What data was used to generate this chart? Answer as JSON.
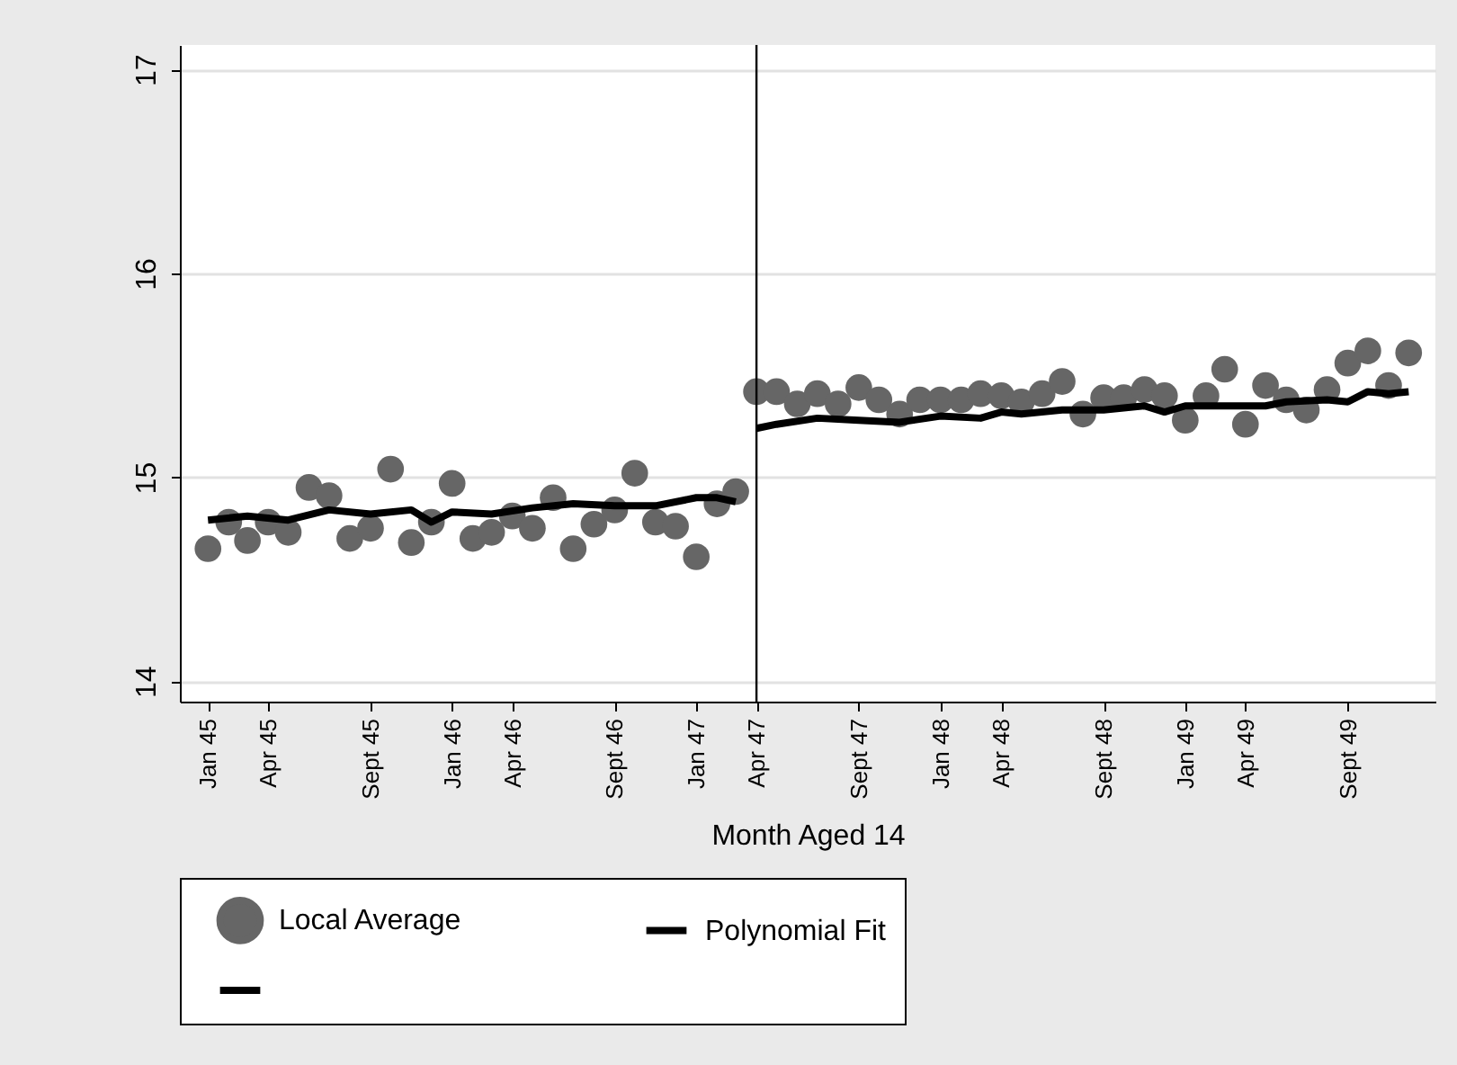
{
  "chart_data": {
    "type": "scatter",
    "xlabel": "Month Aged 14",
    "x": [
      "1945-01",
      "1945-02",
      "1945-03",
      "1945-04",
      "1945-05",
      "1945-06",
      "1945-07",
      "1945-08",
      "1945-09",
      "1945-10",
      "1945-11",
      "1945-12",
      "1946-01",
      "1946-02",
      "1946-03",
      "1946-04",
      "1946-05",
      "1946-06",
      "1946-07",
      "1946-08",
      "1946-09",
      "1946-10",
      "1946-11",
      "1946-12",
      "1947-01",
      "1947-02",
      "1947-03",
      "1947-04",
      "1947-05",
      "1947-06",
      "1947-07",
      "1947-08",
      "1947-09",
      "1947-10",
      "1947-11",
      "1947-12",
      "1948-01",
      "1948-02",
      "1948-03",
      "1948-04",
      "1948-05",
      "1948-06",
      "1948-07",
      "1948-08",
      "1948-09",
      "1948-10",
      "1948-11",
      "1948-12",
      "1949-01",
      "1949-02",
      "1949-03",
      "1949-04",
      "1949-05",
      "1949-06",
      "1949-07",
      "1949-08",
      "1949-09",
      "1949-10",
      "1949-11",
      "1949-12"
    ],
    "series": [
      {
        "name": "Local Average",
        "color": "#666666",
        "marker": "circle",
        "values": [
          14.65,
          14.78,
          14.69,
          14.78,
          14.73,
          14.95,
          14.91,
          14.7,
          14.75,
          15.04,
          14.68,
          14.78,
          14.97,
          14.7,
          14.73,
          14.81,
          14.75,
          14.9,
          14.65,
          14.77,
          14.84,
          15.02,
          14.78,
          14.76,
          14.61,
          14.87,
          14.93,
          15.42,
          15.42,
          15.36,
          15.41,
          15.36,
          15.44,
          15.38,
          15.31,
          15.38,
          15.38,
          15.38,
          15.41,
          15.4,
          15.37,
          15.41,
          15.47,
          15.31,
          15.39,
          15.39,
          15.43,
          15.4,
          15.28,
          15.4,
          15.53,
          15.26,
          15.45,
          15.38,
          15.33,
          15.43,
          15.56,
          15.62,
          15.45,
          15.61
        ]
      },
      {
        "name": "Polynomial Fit",
        "type": "line",
        "color": "#000000",
        "x": [
          "1945-01",
          "1945-03",
          "1945-05",
          "1945-07",
          "1945-09",
          "1945-11",
          "1945-12",
          "1946-01",
          "1946-03",
          "1946-05",
          "1946-07",
          "1946-09",
          "1946-11",
          "1947-01",
          "1947-02",
          "1947-03"
        ],
        "values": [
          14.79,
          14.81,
          14.79,
          14.84,
          14.82,
          14.84,
          14.78,
          14.83,
          14.82,
          14.85,
          14.87,
          14.86,
          14.86,
          14.9,
          14.9,
          14.88
        ]
      },
      {
        "type": "line",
        "color": "#000000",
        "x": [
          "1947-04",
          "1947-05",
          "1947-07",
          "1947-09",
          "1947-11",
          "1948-01",
          "1948-03",
          "1948-04",
          "1948-05",
          "1948-07",
          "1948-09",
          "1948-10",
          "1948-11",
          "1948-12",
          "1949-01",
          "1949-04",
          "1949-05",
          "1949-06",
          "1949-08",
          "1949-09",
          "1949-10",
          "1949-11",
          "1949-12"
        ],
        "values": [
          15.24,
          15.26,
          15.29,
          15.28,
          15.27,
          15.3,
          15.29,
          15.32,
          15.31,
          15.33,
          15.33,
          15.34,
          15.35,
          15.32,
          15.35,
          15.35,
          15.35,
          15.37,
          15.38,
          15.37,
          15.42,
          15.41,
          15.42
        ]
      }
    ],
    "xlim": [
      "1944-11-20",
      "1950-01-10"
    ],
    "xticks": [
      {
        "value": "1945-01",
        "label": "Jan 45"
      },
      {
        "value": "1945-04",
        "label": "Apr 45"
      },
      {
        "value": "1945-09",
        "label": "Sept 45"
      },
      {
        "value": "1946-01",
        "label": "Jan 46"
      },
      {
        "value": "1946-04",
        "label": "Apr 46"
      },
      {
        "value": "1946-09",
        "label": "Sept 46"
      },
      {
        "value": "1947-01",
        "label": "Jan 47"
      },
      {
        "value": "1947-04",
        "label": "Apr 47"
      },
      {
        "value": "1947-09",
        "label": "Sept 47"
      },
      {
        "value": "1948-01",
        "label": "Jan 48"
      },
      {
        "value": "1948-04",
        "label": "Apr 48"
      },
      {
        "value": "1948-09",
        "label": "Sept 48"
      },
      {
        "value": "1949-01",
        "label": "Jan 49"
      },
      {
        "value": "1949-04",
        "label": "Apr 49"
      },
      {
        "value": "1949-09",
        "label": "Sept 49"
      }
    ],
    "ylim": [
      13.9,
      17.12
    ],
    "yticks": [
      14,
      15,
      16,
      17
    ],
    "grid": "y",
    "legend": "bottom",
    "ref_lines": [
      {
        "axis": "x",
        "value": "1947-04",
        "color": "#000000"
      }
    ]
  }
}
